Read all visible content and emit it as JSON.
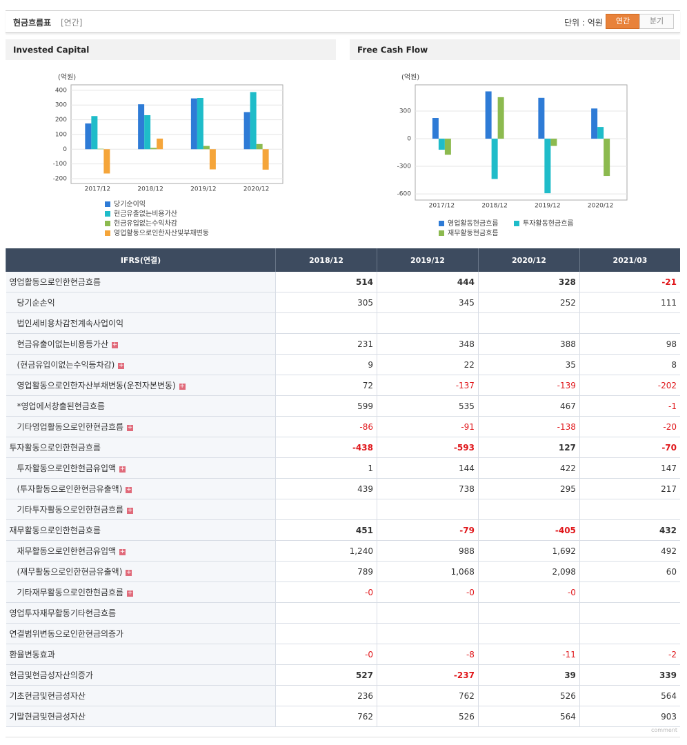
{
  "header": {
    "title": "현금흐름표",
    "period": "[연간]",
    "unit": "단위 : 억원",
    "buttons": [
      "연간",
      "분기"
    ]
  },
  "chart_data": [
    {
      "type": "bar",
      "title": "Invested Capital",
      "unit": "(억원)",
      "categories": [
        "2017/12",
        "2018/12",
        "2019/12",
        "2020/12"
      ],
      "series": [
        {
          "name": "당기순이익",
          "color": "#2e7bd6",
          "values": [
            175,
            305,
            345,
            252
          ]
        },
        {
          "name": "현금유출없는비용가산",
          "color": "#1fbcc9",
          "values": [
            225,
            231,
            348,
            388
          ]
        },
        {
          "name": "현금유입없는수익차감",
          "color": "#8cba4f",
          "values": [
            3,
            9,
            22,
            35
          ]
        },
        {
          "name": "영업활동으로인한자산및부채변동",
          "color": "#f5a53a",
          "values": [
            -165,
            72,
            -137,
            -139
          ]
        }
      ],
      "ylim": [
        -233,
        437
      ],
      "yticks": [
        -200,
        -100,
        0,
        100,
        200,
        300,
        400
      ],
      "grid": true
    },
    {
      "type": "bar",
      "title": "Free Cash Flow",
      "unit": "(억원)",
      "categories": [
        "2017/12",
        "2018/12",
        "2019/12",
        "2020/12"
      ],
      "series": [
        {
          "name": "영업활동현금흐름",
          "color": "#2e7bd6",
          "values": [
            225,
            514,
            444,
            328
          ]
        },
        {
          "name": "투자활동현금흐름",
          "color": "#1fbcc9",
          "values": [
            -120,
            -438,
            -593,
            127
          ]
        },
        {
          "name": "재무활동현금흐름",
          "color": "#8cba4f",
          "values": [
            -175,
            451,
            -79,
            -405
          ]
        }
      ],
      "ylim": [
        -667,
        585
      ],
      "yticks": [
        -600,
        -300,
        0,
        300
      ],
      "grid": true
    }
  ],
  "table": {
    "columns": [
      "IFRS(연결)",
      "2018/12",
      "2019/12",
      "2020/12",
      "2021/03"
    ],
    "rows": [
      {
        "label": "영업활동으로인한현금흐름",
        "values": [
          "514",
          "444",
          "328",
          "-21"
        ]
      },
      {
        "label": "당기순손익",
        "values": [
          "305",
          "345",
          "252",
          "111"
        ]
      },
      {
        "label": "법인세비용차감전계속사업이익",
        "values": [
          null,
          null,
          null,
          null
        ]
      },
      {
        "label": "현금유출이없는비용등가산",
        "values": [
          "231",
          "348",
          "388",
          "98"
        ]
      },
      {
        "label": "(현금유입이없는수익등차감)",
        "values": [
          "9",
          "22",
          "35",
          "8"
        ]
      },
      {
        "label": "영업활동으로인한자산부채변동(운전자본변동)",
        "values": [
          "72",
          "-137",
          "-139",
          "-202"
        ]
      },
      {
        "label": "*영업에서창출된현금흐름",
        "values": [
          "599",
          "535",
          "467",
          "-1"
        ]
      },
      {
        "label": "기타영업활동으로인한현금흐름",
        "values": [
          "-86",
          "-91",
          "-138",
          "-20"
        ]
      },
      {
        "label": "투자활동으로인한현금흐름",
        "values": [
          "-438",
          "-593",
          "127",
          "-70"
        ]
      },
      {
        "label": "투자활동으로인한현금유입액",
        "values": [
          "1",
          "144",
          "422",
          "147"
        ]
      },
      {
        "label": "(투자활동으로인한현금유출액)",
        "values": [
          "439",
          "738",
          "295",
          "217"
        ]
      },
      {
        "label": "기타투자활동으로인한현금흐름",
        "values": [
          null,
          null,
          null,
          null
        ]
      },
      {
        "label": "재무활동으로인한현금흐름",
        "values": [
          "451",
          "-79",
          "-405",
          "432"
        ]
      },
      {
        "label": "재무활동으로인한현금유입액",
        "values": [
          "1,240",
          "988",
          "1,692",
          "492"
        ]
      },
      {
        "label": "(재무활동으로인한현금유출액)",
        "values": [
          "789",
          "1,068",
          "2,098",
          "60"
        ]
      },
      {
        "label": "기타재무활동으로인한현금흐름",
        "values": [
          "-0",
          "-0",
          "-0",
          null
        ]
      },
      {
        "label": "영업투자재무활동기타현금흐름",
        "values": [
          null,
          null,
          null,
          null
        ]
      },
      {
        "label": "연결범위변동으로인한현금의증가",
        "values": [
          null,
          null,
          null,
          null
        ]
      },
      {
        "label": "환율변동효과",
        "values": [
          "-0",
          "-8",
          "-11",
          "-2"
        ]
      },
      {
        "label": "현금및현금성자산의증가",
        "values": [
          "527",
          "-237",
          "39",
          "339"
        ]
      },
      {
        "label": "기초현금및현금성자산",
        "values": [
          "236",
          "762",
          "526",
          "564"
        ]
      },
      {
        "label": "기말현금및현금성자산",
        "values": [
          "762",
          "526",
          "564",
          "903"
        ]
      }
    ]
  },
  "footer": {
    "text": "comment"
  }
}
